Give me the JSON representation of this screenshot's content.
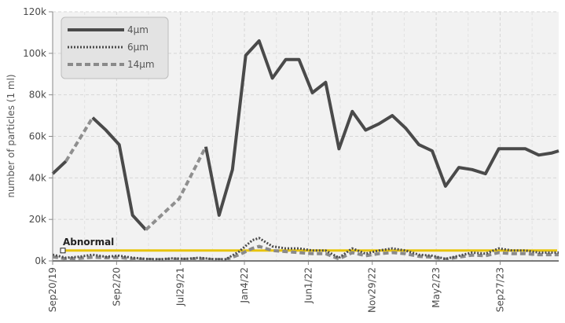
{
  "chart_data": {
    "type": "line",
    "title": "",
    "xlabel": "",
    "ylabel": "number of particles (1 ml)",
    "ylim": [
      0,
      120000
    ],
    "y_ticks": [
      {
        "value": 0,
        "label": "0k"
      },
      {
        "value": 20000,
        "label": "20k"
      },
      {
        "value": 40000,
        "label": "40k"
      },
      {
        "value": 60000,
        "label": "60k"
      },
      {
        "value": 80000,
        "label": "80k"
      },
      {
        "value": 100000,
        "label": "100k"
      },
      {
        "value": 120000,
        "label": "120k"
      }
    ],
    "x_tick_labels": [
      "Sep20/19",
      "Sep2/20",
      "Jul29/21",
      "Jan4/22",
      "Jun1/22",
      "Nov29/22",
      "May2/23",
      "Sep27/23"
    ],
    "x_tick_positions": [
      0,
      9.6,
      19.2,
      28.8,
      38.4,
      48,
      57.6,
      67.2
    ],
    "x_range": [
      0,
      76
    ],
    "grid": true,
    "background": "#f2f2f2",
    "legend_position": "top-left",
    "series": [
      {
        "name": "4μm",
        "color": "#4a4a4a",
        "style": "solid",
        "segments": [
          {
            "style": "solid",
            "points": [
              [
                0,
                42000
              ],
              [
                2,
                48000
              ]
            ]
          },
          {
            "style": "dashed",
            "points": [
              [
                2,
                48000
              ],
              [
                6,
                69000
              ]
            ]
          },
          {
            "style": "solid",
            "points": [
              [
                6,
                69000
              ],
              [
                8,
                63000
              ],
              [
                10,
                56000
              ],
              [
                12,
                22000
              ],
              [
                14,
                15000
              ]
            ]
          },
          {
            "style": "dashed",
            "points": [
              [
                14,
                15000
              ],
              [
                19,
                30000
              ],
              [
                23,
                55000
              ]
            ]
          },
          {
            "style": "solid",
            "points": [
              [
                23,
                55000
              ],
              [
                25,
                22000
              ],
              [
                27,
                44000
              ],
              [
                29,
                99000
              ],
              [
                31,
                106000
              ],
              [
                33,
                88000
              ],
              [
                35,
                97000
              ],
              [
                37,
                97000
              ],
              [
                39,
                81000
              ],
              [
                41,
                86000
              ],
              [
                43,
                54000
              ],
              [
                45,
                72000
              ],
              [
                47,
                63000
              ],
              [
                49,
                66000
              ],
              [
                51,
                70000
              ],
              [
                53,
                64000
              ],
              [
                55,
                56000
              ],
              [
                57,
                53000
              ],
              [
                59,
                36000
              ],
              [
                61,
                45000
              ],
              [
                63,
                44000
              ],
              [
                65,
                42000
              ],
              [
                67,
                54000
              ],
              [
                69,
                54000
              ],
              [
                71,
                54000
              ],
              [
                73,
                51000
              ],
              [
                75,
                52000
              ],
              [
                76,
                53000
              ]
            ]
          }
        ]
      },
      {
        "name": "6μm",
        "color": "#4a4a4a",
        "style": "dotted",
        "segments": [
          {
            "style": "solid",
            "points": [
              [
                0,
                3000
              ],
              [
                2,
                1500
              ],
              [
                4,
                2000
              ],
              [
                6,
                3000
              ],
              [
                8,
                2000
              ],
              [
                10,
                2500
              ],
              [
                12,
                1500
              ],
              [
                14,
                1000
              ],
              [
                16,
                800
              ],
              [
                18,
                1200
              ],
              [
                20,
                1000
              ],
              [
                22,
                1500
              ],
              [
                24,
                900
              ],
              [
                26,
                800
              ],
              [
                28,
                4500
              ],
              [
                30,
                10000
              ],
              [
                31,
                11000
              ],
              [
                33,
                7000
              ],
              [
                35,
                6000
              ],
              [
                37,
                6000
              ],
              [
                39,
                5000
              ],
              [
                41,
                5000
              ],
              [
                43,
                1500
              ],
              [
                45,
                6000
              ],
              [
                47,
                3500
              ],
              [
                49,
                5000
              ],
              [
                51,
                6000
              ],
              [
                53,
                5000
              ],
              [
                55,
                3000
              ],
              [
                57,
                2500
              ],
              [
                59,
                1000
              ],
              [
                61,
                2500
              ],
              [
                63,
                4000
              ],
              [
                65,
                3500
              ],
              [
                67,
                6000
              ],
              [
                69,
                5000
              ],
              [
                71,
                5000
              ],
              [
                73,
                4000
              ],
              [
                76,
                4000
              ]
            ]
          }
        ]
      },
      {
        "name": "14μm",
        "color": "#8a8a8a",
        "style": "dashed",
        "segments": [
          {
            "style": "solid",
            "points": [
              [
                0,
                2000
              ],
              [
                2,
                1000
              ],
              [
                4,
                1200
              ],
              [
                6,
                1800
              ],
              [
                8,
                1500
              ],
              [
                10,
                1700
              ],
              [
                12,
                1000
              ],
              [
                14,
                800
              ],
              [
                16,
                600
              ],
              [
                18,
                900
              ],
              [
                20,
                800
              ],
              [
                22,
                1100
              ],
              [
                24,
                700
              ],
              [
                26,
                600
              ],
              [
                28,
                3000
              ],
              [
                30,
                6000
              ],
              [
                31,
                7000
              ],
              [
                33,
                5000
              ],
              [
                35,
                4500
              ],
              [
                37,
                4000
              ],
              [
                39,
                3500
              ],
              [
                41,
                3500
              ],
              [
                43,
                1000
              ],
              [
                45,
                4000
              ],
              [
                47,
                2500
              ],
              [
                49,
                3500
              ],
              [
                51,
                4000
              ],
              [
                53,
                3500
              ],
              [
                55,
                2200
              ],
              [
                57,
                1800
              ],
              [
                59,
                800
              ],
              [
                61,
                1800
              ],
              [
                63,
                2800
              ],
              [
                65,
                2500
              ],
              [
                67,
                4000
              ],
              [
                69,
                3500
              ],
              [
                71,
                3500
              ],
              [
                73,
                3000
              ],
              [
                76,
                3000
              ]
            ]
          }
        ]
      }
    ],
    "thresholds": [
      {
        "label": "Abnormal",
        "value": 5000,
        "color": "#e8c40a"
      }
    ],
    "zero_line_color": "#6a6a6a"
  }
}
